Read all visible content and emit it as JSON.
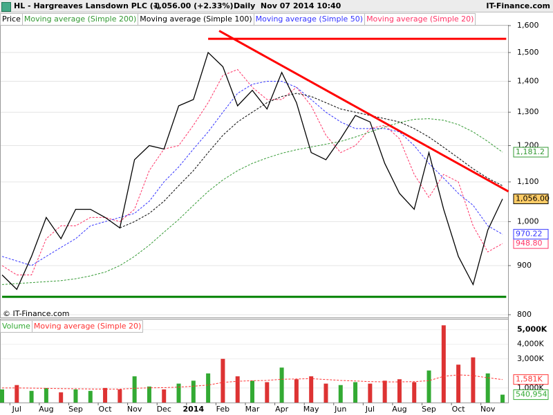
{
  "header": {
    "title": "HL - Hargreaves Lansdown PLC (-)",
    "quote": "1,056.00 (+2.33%)",
    "period": "Daily  Nov 07 2014 10:40",
    "brand": "IT-Finance.com"
  },
  "watermark": "© IT-Finance.com",
  "chart_data": [
    {
      "type": "line",
      "log_scale": true,
      "grid": true,
      "ylim": [
        800,
        1600
      ],
      "yticks": [
        800,
        900,
        {
          "value": 1000,
          "label": "1,000"
        },
        {
          "value": 1100,
          "label": "1,100"
        },
        {
          "value": 1200,
          "label": "1,200"
        },
        {
          "value": 1300,
          "label": "1,300"
        },
        {
          "value": 1400,
          "label": "1,400"
        },
        {
          "value": 1500,
          "label": "1,500"
        },
        {
          "value": 1600,
          "label": "1,600"
        }
      ],
      "series": [
        {
          "name": "Price",
          "color": "#000000",
          "dashed": false,
          "last_label": "1,056.00",
          "label_fill": "#ffcc66",
          "values": [
            880,
            850,
            920,
            1010,
            960,
            1030,
            1030,
            1010,
            985,
            1160,
            1200,
            1190,
            1320,
            1340,
            1500,
            1450,
            1320,
            1370,
            1310,
            1430,
            1330,
            1180,
            1160,
            1220,
            1290,
            1270,
            1150,
            1070,
            1030,
            1180,
            1030,
            920,
            860,
            980,
            1056
          ]
        },
        {
          "name": "Moving average (Simple 200)",
          "color": "#339933",
          "dashed": true,
          "last_label": "1,181.2",
          "label_fill": "#ffffff",
          "values": [
            860,
            862,
            864,
            866,
            868,
            872,
            878,
            886,
            900,
            920,
            945,
            975,
            1005,
            1040,
            1075,
            1105,
            1130,
            1150,
            1165,
            1178,
            1188,
            1196,
            1204,
            1212,
            1225,
            1240,
            1255,
            1268,
            1278,
            1280,
            1275,
            1262,
            1240,
            1212,
            1181.2
          ]
        },
        {
          "name": "Moving average (Simple 100)",
          "color": "#000000",
          "dashed": true,
          "values": [
            null,
            null,
            null,
            null,
            null,
            null,
            null,
            null,
            985,
            1000,
            1020,
            1050,
            1090,
            1130,
            1180,
            1230,
            1270,
            1300,
            1330,
            1350,
            1360,
            1350,
            1330,
            1310,
            1300,
            1290,
            1280,
            1270,
            1250,
            1225,
            1195,
            1165,
            1135,
            1110,
            1090
          ]
        },
        {
          "name": "Moving average (Simple 50)",
          "color": "#3333ff",
          "dashed": true,
          "last_label": "970.22",
          "label_fill": "#ffffff",
          "values": [
            920,
            910,
            900,
            920,
            940,
            960,
            990,
            1000,
            1010,
            1020,
            1050,
            1100,
            1140,
            1190,
            1240,
            1300,
            1360,
            1390,
            1400,
            1400,
            1380,
            1340,
            1300,
            1270,
            1250,
            1250,
            1250,
            1240,
            1200,
            1150,
            1110,
            1070,
            1040,
            990,
            970.22
          ]
        },
        {
          "name": "Moving average (Simple 20)",
          "color": "#ff3366",
          "dashed": true,
          "last_label": "948.80",
          "label_fill": "#ffffff",
          "values": [
            900,
            880,
            880,
            960,
            990,
            990,
            1010,
            1010,
            1000,
            1030,
            1130,
            1190,
            1200,
            1260,
            1330,
            1420,
            1440,
            1380,
            1340,
            1340,
            1380,
            1320,
            1230,
            1180,
            1200,
            1250,
            1260,
            1220,
            1120,
            1060,
            1120,
            1100,
            990,
            930,
            948.8
          ]
        }
      ],
      "trendlines": [
        {
          "color": "#ff0000",
          "start_index": 14,
          "start_value": 1550,
          "end_index": 34.25,
          "end_value": 1550
        },
        {
          "color": "#ff0000",
          "start_index": 14.75,
          "start_value": 1580,
          "end_index": 34.4,
          "end_value": 1075
        },
        {
          "color": "#008000",
          "start_index": 0,
          "start_value": 835,
          "end_index": 34.25,
          "end_value": 835
        }
      ]
    },
    {
      "type": "bar",
      "grid": true,
      "categories": [
        null,
        "Jul",
        null,
        "Aug",
        null,
        "Sep",
        null,
        "Oct",
        null,
        "Nov",
        null,
        "Dec",
        null,
        "2014",
        null,
        "Feb",
        null,
        "Mar",
        null,
        "Apr",
        null,
        "May",
        null,
        "Jun",
        null,
        "Jul",
        null,
        "Aug",
        null,
        "Sep",
        null,
        "Oct",
        null,
        "Nov",
        null
      ],
      "ylim": [
        0,
        5600000
      ],
      "yticks": [
        {
          "value": 1000000,
          "label": "1,000K"
        },
        {
          "value": 3000000,
          "label": "3,000K"
        },
        {
          "value": 4000000,
          "label": "4,000K"
        },
        {
          "value": 5000000,
          "label": "5,000K"
        }
      ],
      "series": [
        {
          "name": "Volume",
          "color": "#33aa33",
          "down_color": "#dd3333",
          "last_label": "540,954",
          "label_fill": "#ffffff",
          "values": [
            900000,
            1200000,
            800000,
            1000000,
            700000,
            900000,
            800000,
            1000000,
            900000,
            1800000,
            1100000,
            900000,
            1300000,
            1500000,
            2000000,
            3000000,
            1800000,
            1500000,
            1400000,
            2400000,
            1600000,
            1800000,
            1300000,
            1200000,
            1400000,
            1300000,
            1500000,
            1600000,
            1400000,
            2200000,
            5300000,
            2600000,
            3100000,
            2000000,
            540954
          ]
        },
        {
          "name": "Moving average (Simple 20)",
          "color": "#ff3333",
          "dashed": true,
          "last_label": "1,581K",
          "label_fill": "#ffffff",
          "values": [
            1000000,
            1000000,
            990000,
            980000,
            960000,
            950000,
            930000,
            920000,
            920000,
            980000,
            1010000,
            1020000,
            1060000,
            1120000,
            1200000,
            1380000,
            1460000,
            1500000,
            1520000,
            1600000,
            1620000,
            1640000,
            1580000,
            1520000,
            1480000,
            1440000,
            1420000,
            1420000,
            1440000,
            1500000,
            1800000,
            1900000,
            1850000,
            1700000,
            1581000
          ]
        }
      ]
    }
  ]
}
